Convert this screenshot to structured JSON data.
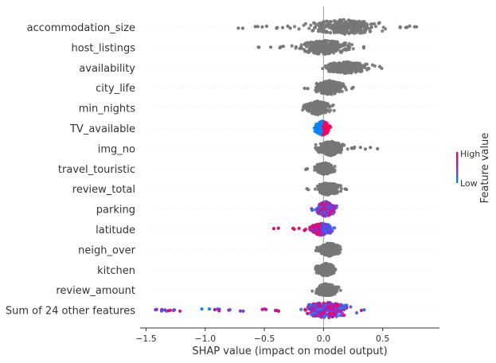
{
  "chart_data": {
    "type": "scatter",
    "subtype": "shap-beeswarm",
    "title": "",
    "xlabel": "SHAP value (impact on model output)",
    "ylabel": "",
    "xlim": [
      -1.55,
      0.98
    ],
    "xticks": [
      -1.5,
      -1.0,
      -0.5,
      0.0,
      0.5
    ],
    "xtick_labels": [
      "−1.5",
      "−1.0",
      "−0.5",
      "0.0",
      "0.5"
    ],
    "grid": false,
    "colorbar": {
      "label": "Feature value",
      "high_label": "High",
      "low_label": "Low",
      "high_color": "#ff0052",
      "mid_color": "#8e2bd6",
      "low_color": "#008bfb"
    },
    "no_value_color": "#777777",
    "features": [
      {
        "name": "accommodation_size",
        "colored": false,
        "body": [
          -0.28,
          0.62
        ],
        "min": -0.72,
        "max": 0.88,
        "max_width": 0.95
      },
      {
        "name": "host_listings",
        "colored": false,
        "body": [
          -0.32,
          0.32
        ],
        "min": -0.55,
        "max": 0.35,
        "max_width": 0.9
      },
      {
        "name": "availability",
        "colored": false,
        "body": [
          -0.07,
          0.45
        ],
        "min": -0.07,
        "max": 0.52,
        "max_width": 0.75
      },
      {
        "name": "city_life",
        "colored": false,
        "body": [
          -0.12,
          0.22
        ],
        "min": -0.16,
        "max": 0.28,
        "max_width": 0.9
      },
      {
        "name": "min_nights",
        "colored": false,
        "body": [
          -0.2,
          0.1
        ],
        "min": -0.22,
        "max": 0.1,
        "max_width": 0.85
      },
      {
        "name": "TV_available",
        "colored": true,
        "color_mode": "split",
        "body": [
          -0.1,
          0.08
        ],
        "min": -0.1,
        "max": 0.09,
        "max_width": 0.9
      },
      {
        "name": "img_no",
        "colored": false,
        "body": [
          -0.1,
          0.22
        ],
        "min": -0.12,
        "max": 0.48,
        "max_width": 0.9
      },
      {
        "name": "travel_touristic",
        "colored": false,
        "body": [
          -0.1,
          0.12
        ],
        "min": -0.15,
        "max": 0.13,
        "max_width": 0.75
      },
      {
        "name": "review_total",
        "colored": false,
        "body": [
          -0.1,
          0.18
        ],
        "min": -0.14,
        "max": 0.2,
        "max_width": 0.8
      },
      {
        "name": "parking",
        "colored": true,
        "color_mode": "mixed",
        "body": [
          -0.08,
          0.12
        ],
        "min": -0.1,
        "max": 0.12,
        "max_width": 0.95
      },
      {
        "name": "latitude",
        "colored": true,
        "color_mode": "low-right",
        "body": [
          -0.15,
          0.12
        ],
        "min": -0.42,
        "max": 0.12,
        "max_width": 0.75
      },
      {
        "name": "neigh_over",
        "colored": false,
        "body": [
          -0.08,
          0.18
        ],
        "min": -0.08,
        "max": 0.18,
        "max_width": 0.85
      },
      {
        "name": "kitchen",
        "colored": false,
        "body": [
          -0.1,
          0.14
        ],
        "min": -0.1,
        "max": 0.15,
        "max_width": 0.8
      },
      {
        "name": "review_amount",
        "colored": false,
        "body": [
          -0.1,
          0.15
        ],
        "min": -0.1,
        "max": 0.16,
        "max_width": 0.8
      },
      {
        "name": "Sum of 24 other features",
        "colored": true,
        "color_mode": "mixed",
        "body": [
          -0.28,
          0.32
        ],
        "min": -1.42,
        "max": 0.38,
        "max_width": 1.0
      }
    ]
  }
}
